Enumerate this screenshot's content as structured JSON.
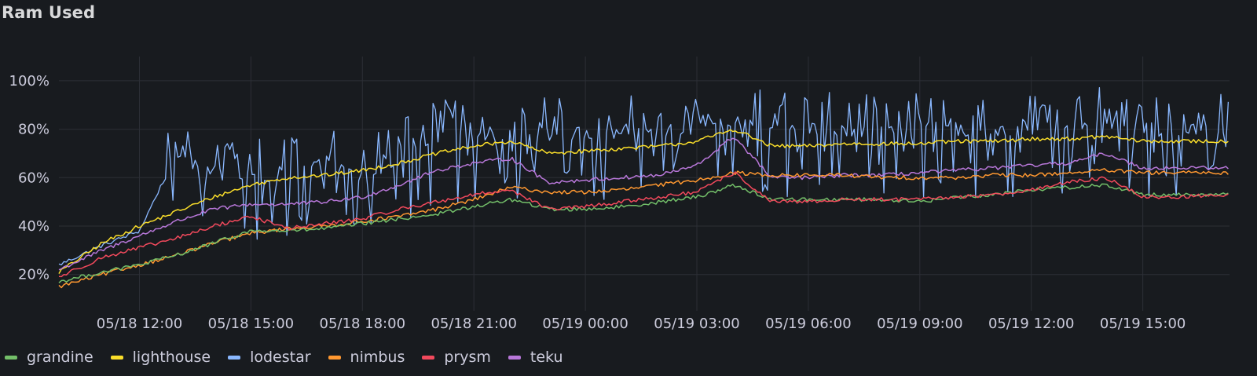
{
  "panel": {
    "title": "Ram Used"
  },
  "chart_data": {
    "type": "line",
    "title": "Ram Used",
    "xlabel": "",
    "ylabel": "",
    "y_unit": "%",
    "ylim": [
      5,
      110
    ],
    "yticks": [
      20,
      40,
      60,
      80,
      100
    ],
    "ytick_labels": [
      "20%",
      "40%",
      "60%",
      "80%",
      "100%"
    ],
    "xlim": [
      "05/18 09:50",
      "05/19 17:20"
    ],
    "xticks": [
      "05/18 12:00",
      "05/18 15:00",
      "05/18 18:00",
      "05/18 21:00",
      "05/19 00:00",
      "05/19 03:00",
      "05/19 06:00",
      "05/19 09:00",
      "05/19 12:00",
      "05/19 15:00"
    ],
    "xtick_labels": [
      "05/18 12:00",
      "05/18 15:00",
      "05/18 18:00",
      "05/18 21:00",
      "05/19 00:00",
      "05/19 03:00",
      "05/19 06:00",
      "05/19 09:00",
      "05/19 12:00",
      "05/19 15:00"
    ],
    "grid": true,
    "legend_position": "bottom-left",
    "series": [
      {
        "name": "grandine",
        "color": "#73bf69",
        "x": [
          "05/18 09:50",
          "05/18 11:00",
          "05/18 12:00",
          "05/18 13:00",
          "05/18 14:00",
          "05/18 15:00",
          "05/18 16:00",
          "05/18 17:00",
          "05/18 18:00",
          "05/18 19:00",
          "05/18 20:00",
          "05/18 21:00",
          "05/18 22:00",
          "05/18 23:00",
          "05/19 00:00",
          "05/19 01:00",
          "05/19 02:00",
          "05/19 03:00",
          "05/19 04:00",
          "05/19 05:00",
          "05/19 06:00",
          "05/19 07:00",
          "05/19 08:00",
          "05/19 09:00",
          "05/19 10:00",
          "05/19 11:00",
          "05/19 12:00",
          "05/19 13:00",
          "05/19 14:00",
          "05/19 15:00",
          "05/19 16:00",
          "05/19 17:20"
        ],
        "values": [
          17,
          21,
          24,
          28,
          33,
          38,
          38,
          39,
          41,
          43,
          45,
          48,
          51,
          47,
          47,
          48,
          50,
          52,
          57,
          51,
          51,
          51,
          51,
          50,
          52,
          53,
          55,
          56,
          57,
          53,
          53,
          53
        ]
      },
      {
        "name": "lighthouse",
        "color": "#fade2a",
        "x": [
          "05/18 09:50",
          "05/18 11:00",
          "05/18 12:00",
          "05/18 13:00",
          "05/18 14:00",
          "05/18 15:00",
          "05/18 16:00",
          "05/18 17:00",
          "05/18 18:00",
          "05/18 19:00",
          "05/18 20:00",
          "05/18 21:00",
          "05/18 22:00",
          "05/18 23:00",
          "05/19 00:00",
          "05/19 01:00",
          "05/19 02:00",
          "05/19 03:00",
          "05/19 04:00",
          "05/19 05:00",
          "05/19 06:00",
          "05/19 07:00",
          "05/19 08:00",
          "05/19 09:00",
          "05/19 10:00",
          "05/19 11:00",
          "05/19 12:00",
          "05/19 13:00",
          "05/19 14:00",
          "05/19 15:00",
          "05/19 16:00",
          "05/19 17:20"
        ],
        "values": [
          21,
          33,
          40,
          46,
          52,
          57,
          60,
          61,
          63,
          66,
          70,
          73,
          75,
          70,
          71,
          72,
          73,
          75,
          80,
          73,
          73,
          74,
          74,
          74,
          75,
          75,
          76,
          76,
          77,
          75,
          75,
          75
        ]
      },
      {
        "name": "lodestar",
        "color": "#8ab8ff",
        "x": [
          "05/18 09:50",
          "05/18 11:00",
          "05/18 12:00",
          "05/18 13:00",
          "05/18 14:00",
          "05/18 15:00",
          "05/18 16:00",
          "05/18 17:00",
          "05/18 18:00",
          "05/18 19:00",
          "05/18 20:00",
          "05/18 21:00",
          "05/18 22:00",
          "05/18 23:00",
          "05/19 00:00",
          "05/19 01:00",
          "05/19 02:00",
          "05/19 03:00",
          "05/19 04:00",
          "05/19 05:00",
          "05/19 06:00",
          "05/19 07:00",
          "05/19 08:00",
          "05/19 09:00",
          "05/19 10:00",
          "05/19 11:00",
          "05/19 12:00",
          "05/19 13:00",
          "05/19 14:00",
          "05/19 15:00",
          "05/19 16:00",
          "05/19 17:20"
        ],
        "values": [
          24,
          32,
          38,
          70,
          62,
          60,
          62,
          65,
          60,
          68,
          76,
          78,
          78,
          78,
          78,
          79,
          80,
          80,
          84,
          80,
          80,
          80,
          80,
          80,
          80,
          80,
          80,
          80,
          82,
          80,
          80,
          80
        ]
      },
      {
        "name": "nimbus",
        "color": "#ff9830",
        "x": [
          "05/18 09:50",
          "05/18 11:00",
          "05/18 12:00",
          "05/18 13:00",
          "05/18 14:00",
          "05/18 15:00",
          "05/18 16:00",
          "05/18 17:00",
          "05/18 18:00",
          "05/18 19:00",
          "05/18 20:00",
          "05/18 21:00",
          "05/18 22:00",
          "05/18 23:00",
          "05/19 00:00",
          "05/19 01:00",
          "05/19 02:00",
          "05/19 03:00",
          "05/19 04:00",
          "05/19 05:00",
          "05/19 06:00",
          "05/19 07:00",
          "05/19 08:00",
          "05/19 09:00",
          "05/19 10:00",
          "05/19 11:00",
          "05/19 12:00",
          "05/19 13:00",
          "05/19 14:00",
          "05/19 15:00",
          "05/19 16:00",
          "05/19 17:20"
        ],
        "values": [
          15,
          20,
          24,
          28,
          33,
          37,
          39,
          40,
          42,
          44,
          47,
          51,
          56,
          54,
          54,
          55,
          57,
          59,
          62,
          61,
          61,
          61,
          60,
          60,
          60,
          61,
          61,
          62,
          63,
          62,
          62,
          62
        ]
      },
      {
        "name": "prysm",
        "color": "#f2495c",
        "x": [
          "05/18 09:50",
          "05/18 11:00",
          "05/18 12:00",
          "05/18 13:00",
          "05/18 14:00",
          "05/18 15:00",
          "05/18 16:00",
          "05/18 17:00",
          "05/18 18:00",
          "05/18 19:00",
          "05/18 20:00",
          "05/18 21:00",
          "05/18 22:00",
          "05/18 23:00",
          "05/19 00:00",
          "05/19 01:00",
          "05/19 02:00",
          "05/19 03:00",
          "05/19 04:00",
          "05/19 05:00",
          "05/19 06:00",
          "05/19 07:00",
          "05/19 08:00",
          "05/19 09:00",
          "05/19 10:00",
          "05/19 11:00",
          "05/19 12:00",
          "05/19 13:00",
          "05/19 14:00",
          "05/19 15:00",
          "05/19 16:00",
          "05/19 17:20"
        ],
        "values": [
          19,
          27,
          31,
          35,
          40,
          44,
          39,
          41,
          43,
          47,
          50,
          53,
          55,
          47,
          48,
          50,
          52,
          54,
          62,
          50,
          50,
          51,
          51,
          51,
          52,
          53,
          55,
          58,
          60,
          52,
          52,
          53
        ]
      },
      {
        "name": "teku",
        "color": "#b877d9",
        "x": [
          "05/18 09:50",
          "05/18 11:00",
          "05/18 12:00",
          "05/18 13:00",
          "05/18 14:00",
          "05/18 15:00",
          "05/18 16:00",
          "05/18 17:00",
          "05/18 18:00",
          "05/18 19:00",
          "05/18 20:00",
          "05/18 21:00",
          "05/18 22:00",
          "05/18 23:00",
          "05/19 00:00",
          "05/19 01:00",
          "05/19 02:00",
          "05/19 03:00",
          "05/19 04:00",
          "05/19 05:00",
          "05/19 06:00",
          "05/19 07:00",
          "05/19 08:00",
          "05/19 09:00",
          "05/19 10:00",
          "05/19 11:00",
          "05/19 12:00",
          "05/19 13:00",
          "05/19 14:00",
          "05/19 15:00",
          "05/19 16:00",
          "05/19 17:20"
        ],
        "values": [
          22,
          30,
          36,
          42,
          47,
          49,
          49,
          50,
          52,
          57,
          63,
          66,
          68,
          58,
          59,
          60,
          61,
          65,
          77,
          60,
          60,
          61,
          61,
          62,
          63,
          64,
          65,
          66,
          70,
          64,
          64,
          64
        ]
      }
    ]
  },
  "legend": {
    "items": [
      {
        "label": "grandine",
        "color": "#73bf69"
      },
      {
        "label": "lighthouse",
        "color": "#fade2a"
      },
      {
        "label": "lodestar",
        "color": "#8ab8ff"
      },
      {
        "label": "nimbus",
        "color": "#ff9830"
      },
      {
        "label": "prysm",
        "color": "#f2495c"
      },
      {
        "label": "teku",
        "color": "#b877d9"
      }
    ]
  }
}
